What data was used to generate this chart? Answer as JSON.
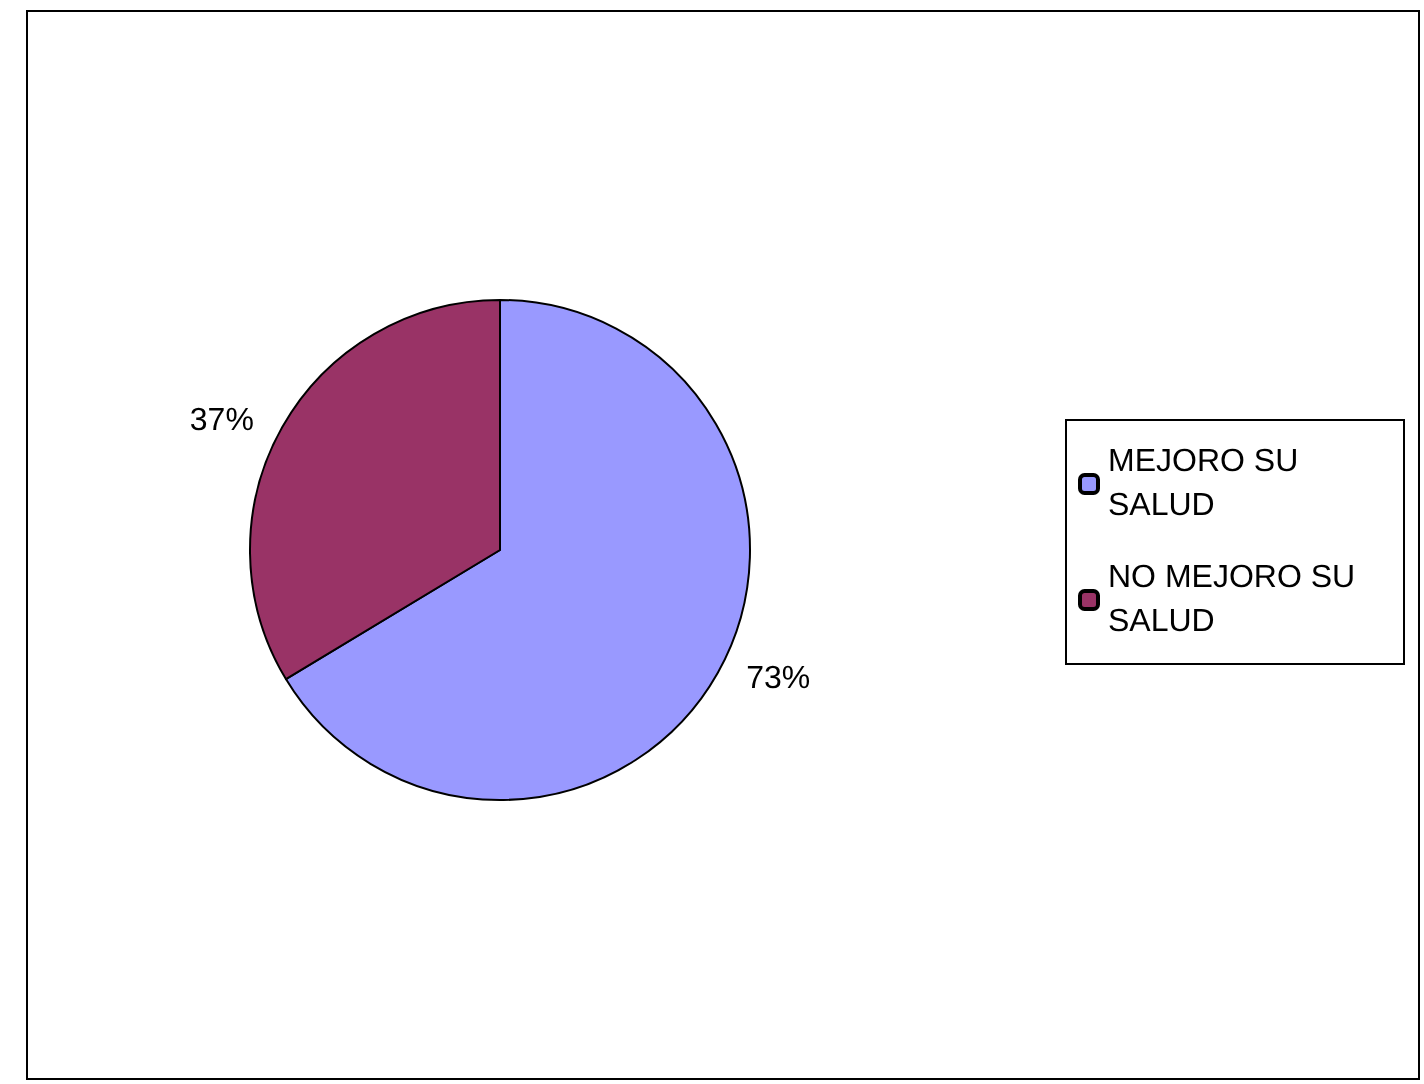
{
  "chart_data": {
    "type": "pie",
    "categories": [
      "MEJORO SU SALUD",
      "NO MEJORO SU SALUD"
    ],
    "values": [
      73,
      37
    ],
    "colors": [
      "#9999ff",
      "#993366"
    ],
    "value_labels": [
      "73%",
      "37%"
    ],
    "legend": "right"
  }
}
